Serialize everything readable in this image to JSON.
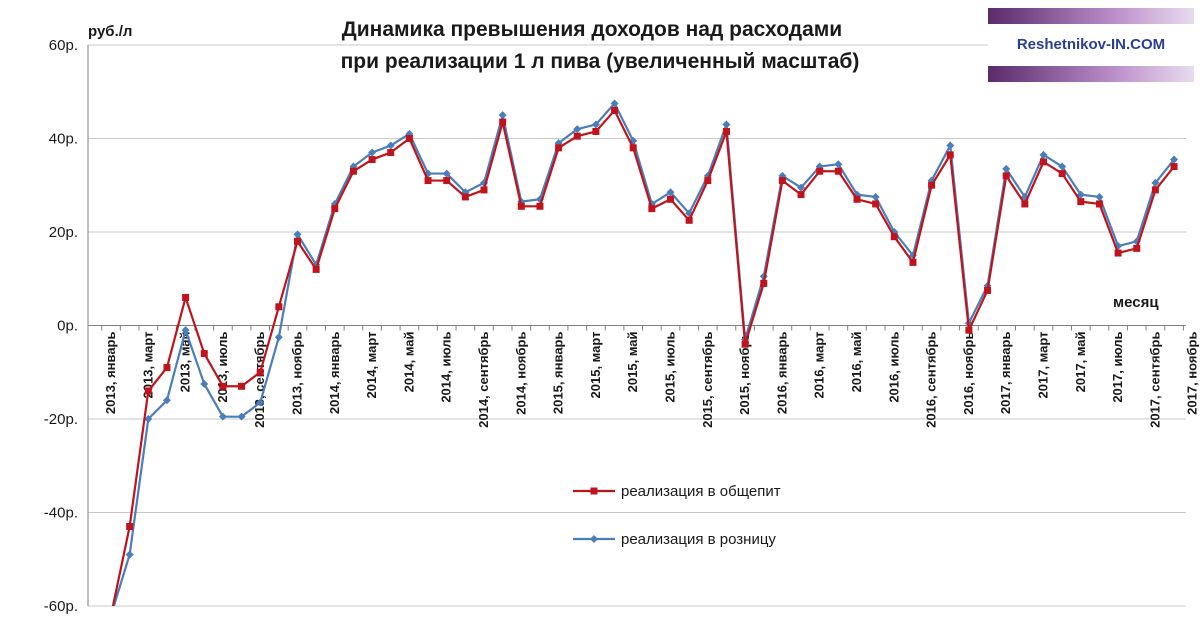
{
  "chart_data": {
    "type": "line",
    "title": "Динамика превышения доходов над расходами",
    "subtitle": "при реализации 1 л пива (увеличенный масштаб)",
    "ylabel": "руб./л",
    "xlabel": "месяц",
    "ylim": [
      -60,
      60
    ],
    "y_ticks": [
      "60р.",
      "40р.",
      "20р.",
      "0р.",
      "-20р.",
      "-40р.",
      "-60р."
    ],
    "y_tick_values": [
      60,
      40,
      20,
      0,
      -20,
      -40,
      -60
    ],
    "grid": "horizontal",
    "legend_placement": "bottom-center",
    "x_tick_labels": [
      "2013, январь",
      "2013, март",
      "2013, май",
      "2013, июль",
      "2013, сентябрь",
      "2013, ноябрь",
      "2014, январь",
      "2014, март",
      "2014, май",
      "2014, июль",
      "2014, сентябрь",
      "2014, ноябрь",
      "2015, январь",
      "2015, март",
      "2015, май",
      "2015, июль",
      "2015, сентябрь",
      "2015, ноябрь",
      "2016, январь",
      "2016, март",
      "2016, май",
      "2016, июль",
      "2016, сентябрь",
      "2016, ноябрь",
      "2017, январь",
      "2017, март",
      "2017, май",
      "2017, июль",
      "2017, сентябрь",
      "2017, ноябрь"
    ],
    "series": [
      {
        "name": "реализация в общепит",
        "color": "#c0141c",
        "marker": "square",
        "values": [
          -62,
          -43,
          -14,
          -9,
          6,
          -6,
          -13,
          -13,
          -10,
          4,
          18,
          12,
          25,
          33,
          35.5,
          37,
          40,
          31,
          31,
          27.5,
          29,
          43.5,
          25.5,
          25.5,
          38,
          40.5,
          41.5,
          46,
          38,
          25,
          27,
          22.5,
          31,
          41.5,
          -4,
          9,
          31,
          28,
          33,
          33,
          27,
          26,
          19,
          13.5,
          30,
          36.5,
          -1,
          7.5,
          32,
          26,
          35,
          32.5,
          26.5,
          26,
          15.5,
          16.5,
          29,
          34
        ]
      },
      {
        "name": "реализация в розницу",
        "color": "#4a7ebb",
        "marker": "diamond",
        "values": [
          -62,
          -49,
          -20,
          -16,
          -1,
          -12.5,
          -19.5,
          -19.5,
          -16.5,
          -2.5,
          19.5,
          13,
          26,
          34,
          37,
          38.5,
          41,
          32.5,
          32.5,
          28.5,
          30.5,
          45,
          26.5,
          27,
          39,
          42,
          43,
          47.5,
          39.5,
          26,
          28.5,
          24,
          32,
          43,
          -3,
          10.5,
          32,
          29.5,
          34,
          34.5,
          28,
          27.5,
          20,
          15,
          31,
          38.5,
          0.5,
          8.5,
          33.5,
          27.5,
          36.5,
          34,
          28,
          27.5,
          17,
          18,
          30.5,
          35.5
        ]
      }
    ]
  },
  "watermark": {
    "text": "Reshetnikov-IN.COM"
  }
}
